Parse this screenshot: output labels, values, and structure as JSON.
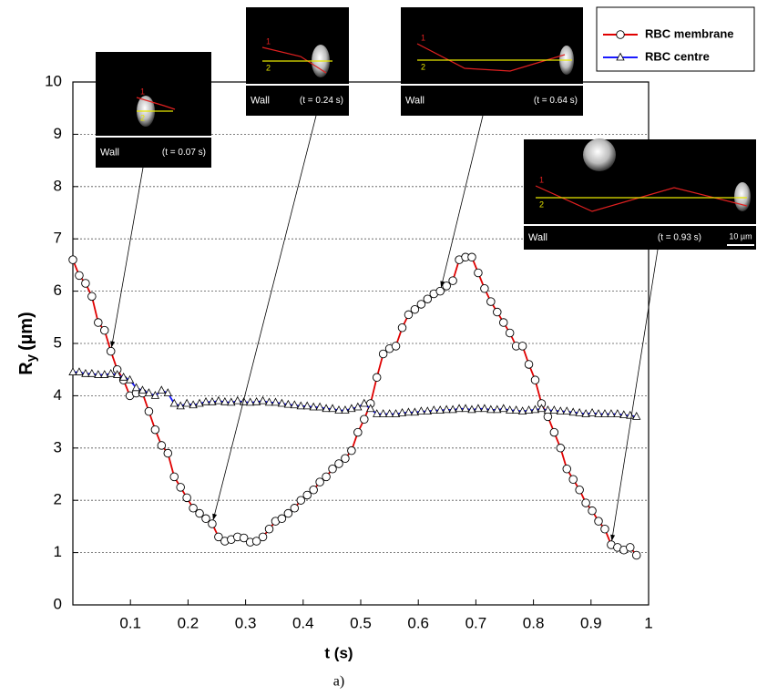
{
  "chart_data": {
    "type": "line",
    "x_label": "t (s)",
    "y_label": "R",
    "y_label_sub": "y",
    "y_label_unit": "(µm)",
    "caption": "a)",
    "x": [
      0,
      0.011,
      0.022,
      0.033,
      0.044,
      0.055,
      0.066,
      0.077,
      0.088,
      0.099,
      0.11,
      0.121,
      0.132,
      0.143,
      0.154,
      0.165,
      0.176,
      0.187,
      0.198,
      0.209,
      0.22,
      0.231,
      0.242,
      0.253,
      0.264,
      0.275,
      0.286,
      0.297,
      0.308,
      0.319,
      0.33,
      0.341,
      0.352,
      0.363,
      0.374,
      0.385,
      0.396,
      0.407,
      0.418,
      0.429,
      0.44,
      0.451,
      0.462,
      0.473,
      0.484,
      0.495,
      0.506,
      0.517,
      0.528,
      0.539,
      0.55,
      0.561,
      0.572,
      0.583,
      0.594,
      0.605,
      0.616,
      0.627,
      0.638,
      0.649,
      0.66,
      0.671,
      0.682,
      0.693,
      0.704,
      0.715,
      0.726,
      0.737,
      0.748,
      0.759,
      0.77,
      0.781,
      0.792,
      0.803,
      0.814,
      0.825,
      0.836,
      0.847,
      0.858,
      0.869,
      0.88,
      0.891,
      0.902,
      0.913,
      0.924,
      0.935,
      0.946,
      0.957,
      0.968,
      0.979
    ],
    "series": [
      {
        "name": "RBC membrane",
        "color": "#e00000",
        "marker": "circle",
        "values": [
          6.6,
          6.3,
          6.15,
          5.9,
          5.4,
          5.25,
          4.85,
          4.5,
          4.3,
          4.0,
          4.05,
          4.05,
          3.7,
          3.35,
          3.05,
          2.9,
          2.45,
          2.25,
          2.05,
          1.85,
          1.75,
          1.65,
          1.55,
          1.3,
          1.22,
          1.25,
          1.3,
          1.28,
          1.2,
          1.22,
          1.3,
          1.45,
          1.6,
          1.65,
          1.75,
          1.85,
          2.0,
          2.1,
          2.2,
          2.35,
          2.45,
          2.6,
          2.7,
          2.8,
          2.95,
          3.3,
          3.55,
          3.85,
          4.35,
          4.8,
          4.9,
          4.95,
          5.3,
          5.55,
          5.65,
          5.75,
          5.85,
          5.95,
          6.0,
          6.1,
          6.2,
          6.6,
          6.65,
          6.65,
          6.35,
          6.05,
          5.8,
          5.6,
          5.4,
          5.2,
          4.95,
          4.95,
          4.6,
          4.3,
          3.85,
          3.6,
          3.3,
          3.0,
          2.6,
          2.4,
          2.2,
          1.95,
          1.8,
          1.6,
          1.45,
          1.15,
          1.1,
          1.05,
          1.1,
          0.95
        ]
      },
      {
        "name": "RBC centre",
        "color": "#1a1aff",
        "marker": "triangle",
        "values": [
          4.45,
          4.45,
          4.42,
          4.42,
          4.4,
          4.4,
          4.42,
          4.4,
          4.35,
          4.3,
          4.15,
          4.1,
          4.05,
          4.0,
          4.1,
          4.05,
          3.85,
          3.8,
          3.85,
          3.82,
          3.85,
          3.88,
          3.88,
          3.9,
          3.88,
          3.87,
          3.9,
          3.88,
          3.87,
          3.88,
          3.9,
          3.87,
          3.87,
          3.85,
          3.83,
          3.82,
          3.8,
          3.8,
          3.78,
          3.78,
          3.75,
          3.75,
          3.72,
          3.72,
          3.75,
          3.78,
          3.85,
          3.75,
          3.65,
          3.65,
          3.65,
          3.65,
          3.67,
          3.68,
          3.68,
          3.7,
          3.7,
          3.72,
          3.72,
          3.73,
          3.73,
          3.75,
          3.75,
          3.73,
          3.75,
          3.75,
          3.73,
          3.73,
          3.75,
          3.72,
          3.72,
          3.7,
          3.72,
          3.73,
          3.75,
          3.72,
          3.72,
          3.7,
          3.7,
          3.68,
          3.67,
          3.65,
          3.67,
          3.65,
          3.65,
          3.65,
          3.65,
          3.63,
          3.62,
          3.6
        ]
      }
    ],
    "xlim": [
      0,
      1
    ],
    "xticks": [
      0.1,
      0.2,
      0.3,
      0.4,
      0.5,
      0.6,
      0.7,
      0.8,
      0.9,
      1
    ],
    "ylim": [
      0,
      10
    ],
    "yticks": [
      0,
      1,
      2,
      3,
      4,
      5,
      6,
      7,
      8,
      9,
      10
    ],
    "grid": true,
    "legend": "top-right",
    "insets": [
      {
        "wall": "Wall",
        "time": "(t = 0.07 s)"
      },
      {
        "wall": "Wall",
        "time": "(t = 0.24 s)"
      },
      {
        "wall": "Wall",
        "time": "(t = 0.64 s)"
      },
      {
        "wall": "Wall",
        "time": "(t = 0.93 s)"
      }
    ],
    "line_labels": [
      "1",
      "2"
    ],
    "scale_bar": "10 µm"
  }
}
